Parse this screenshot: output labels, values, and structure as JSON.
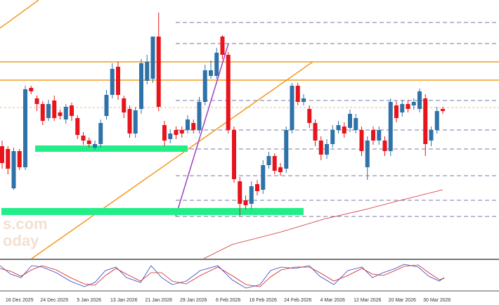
{
  "chart_data": {
    "type": "candlestick",
    "categories": [
      null,
      null,
      null,
      "16 Dec 2025",
      null,
      null,
      null,
      null,
      null,
      "24 Dec 2025",
      null,
      null,
      null,
      null,
      null,
      "5 Jan 2026",
      null,
      null,
      null,
      null,
      null,
      "13 Jan 2026",
      null,
      null,
      null,
      null,
      null,
      "21 Jan 2026",
      null,
      null,
      null,
      null,
      null,
      "29 Jan 2026",
      null,
      null,
      null,
      null,
      null,
      "6 Feb 2026",
      null,
      null,
      null,
      null,
      null,
      "16 Feb 2026",
      null,
      null,
      null,
      null,
      null,
      "24 Feb 2026",
      null,
      null,
      null,
      null,
      null,
      "4 Mar 2026",
      null,
      null,
      null,
      null,
      null,
      "12 Mar 2026",
      null,
      null,
      null,
      null,
      null,
      "20 Mar 2026",
      null,
      null,
      null,
      null,
      null,
      "30 Mar 2026",
      null
    ],
    "open": [
      160,
      156,
      100,
      153,
      130,
      243,
      228,
      220,
      200,
      225,
      208,
      198,
      218,
      200,
      175,
      168,
      158,
      163,
      203,
      233,
      273,
      228,
      213,
      178,
      213,
      253,
      256,
      316,
      190,
      170,
      183,
      183,
      183,
      193,
      183,
      223,
      260,
      260,
      316,
      290,
      183,
      110,
      83,
      78,
      106,
      98,
      133,
      146,
      130,
      128,
      183,
      246,
      223,
      213,
      193,
      168,
      148,
      163,
      183,
      188,
      186,
      183,
      183,
      130,
      183,
      168,
      168,
      153,
      218,
      208,
      220,
      218,
      213,
      228,
      168,
      183,
      213
    ],
    "high": [
      168,
      160,
      158,
      156,
      246,
      246,
      232,
      224,
      226,
      232,
      212,
      220,
      222,
      204,
      180,
      172,
      168,
      198,
      240,
      278,
      280,
      232,
      218,
      216,
      284,
      290,
      316,
      350,
      196,
      184,
      188,
      188,
      204,
      198,
      230,
      276,
      282,
      300,
      318,
      294,
      188,
      116,
      90,
      110,
      112,
      140,
      152,
      150,
      136,
      188,
      250,
      250,
      234,
      218,
      198,
      174,
      170,
      190,
      196,
      194,
      212,
      206,
      188,
      174,
      188,
      188,
      174,
      228,
      224,
      226,
      226,
      228,
      242,
      234,
      188,
      216,
      216
    ],
    "low": [
      128,
      120,
      98,
      126,
      126,
      234,
      210,
      190,
      196,
      196,
      198,
      192,
      196,
      170,
      162,
      158,
      155,
      158,
      198,
      228,
      226,
      200,
      172,
      172,
      206,
      248,
      250,
      210,
      160,
      164,
      170,
      172,
      178,
      178,
      178,
      218,
      256,
      256,
      284,
      178,
      108,
      60,
      70,
      70,
      90,
      92,
      128,
      120,
      118,
      122,
      178,
      218,
      218,
      186,
      160,
      140,
      142,
      158,
      178,
      172,
      180,
      178,
      146,
      112,
      162,
      162,
      146,
      146,
      194,
      202,
      208,
      212,
      208,
      146,
      160,
      178,
      206
    ],
    "close": [
      136,
      128,
      153,
      130,
      241,
      238,
      220,
      196,
      220,
      200,
      203,
      216,
      203,
      176,
      168,
      163,
      163,
      193,
      233,
      270,
      233,
      208,
      178,
      211,
      278,
      280,
      316,
      216,
      168,
      178,
      176,
      178,
      198,
      183,
      223,
      268,
      268,
      293,
      290,
      183,
      113,
      78,
      76,
      103,
      96,
      133,
      146,
      125,
      123,
      183,
      246,
      223,
      228,
      193,
      168,
      148,
      163,
      183,
      190,
      178,
      206,
      200,
      153,
      168,
      168,
      183,
      153,
      223,
      200,
      220,
      213,
      223,
      238,
      163,
      183,
      210,
      210
    ],
    "up_color": "#2f72a8",
    "down_color": "#e8141c",
    "ylim": [
      0,
      368
    ]
  },
  "watermark": {
    "lines": [
      "s.com",
      "oday"
    ]
  }
}
